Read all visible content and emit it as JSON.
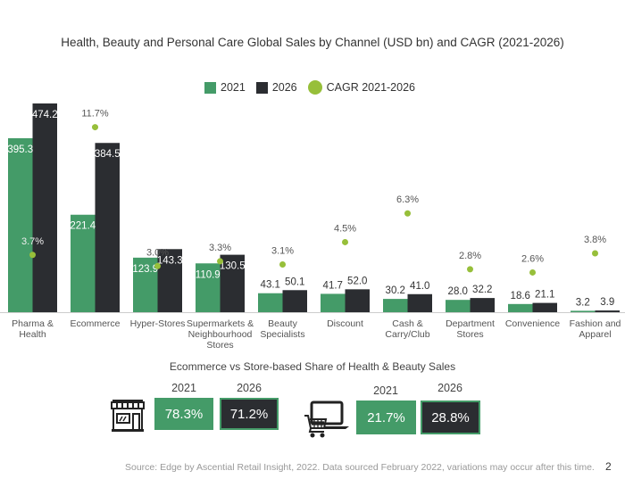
{
  "colors": {
    "c2021": "#449b68",
    "c2026": "#2b2d31",
    "cagr": "#97bf3a",
    "label_light": "#ffffff",
    "label_dark": "#333333"
  },
  "chart_data": {
    "type": "bar",
    "title": "Health, Beauty and Personal Care Global Sales by Channel (USD bn) and CAGR (2021-2026)",
    "xlabel": "",
    "ylabel": "USD bn",
    "grid": false,
    "legend_position": "top-center",
    "categories": [
      [
        "Pharma &",
        "Health"
      ],
      [
        "Ecommerce"
      ],
      [
        "Hyper-Stores"
      ],
      [
        "Supermarkets &",
        "Neighbourhood",
        "Stores"
      ],
      [
        "Beauty",
        "Specialists"
      ],
      [
        "Discount"
      ],
      [
        "Cash &",
        "Carry/Club"
      ],
      [
        "Department",
        "Stores"
      ],
      [
        "Convenience"
      ],
      [
        "Fashion and",
        "Apparel"
      ]
    ],
    "series": [
      {
        "name": "2021",
        "type": "bar",
        "values": [
          395.3,
          221.4,
          123.9,
          110.9,
          43.1,
          41.7,
          30.2,
          28.0,
          18.6,
          3.2
        ]
      },
      {
        "name": "2026",
        "type": "bar",
        "values": [
          474.2,
          384.5,
          143.3,
          130.5,
          50.1,
          52.0,
          41.0,
          32.2,
          21.1,
          3.9
        ]
      },
      {
        "name": "CAGR 2021-2026",
        "type": "scatter",
        "unit": "%",
        "values": [
          3.7,
          11.7,
          3.0,
          3.3,
          3.1,
          4.5,
          6.3,
          2.8,
          2.6,
          3.8
        ]
      }
    ],
    "ylim": [
      0,
      480
    ],
    "y2lim": [
      0,
      13
    ]
  },
  "legend": {
    "l2021": "2021",
    "l2026": "2026",
    "lcagr": "CAGR 2021-2026"
  },
  "share": {
    "title": "Ecommerce vs Store-based Share of Health & Beauty Sales",
    "store": {
      "icon": "storefront-icon",
      "y2021": "2021",
      "y2026": "2026",
      "v2021": "78.3%",
      "v2026": "71.2%"
    },
    "ecommerce": {
      "icon": "laptop-cart-icon",
      "y2021": "2021",
      "y2026": "2026",
      "v2021": "21.7%",
      "v2026": "28.8%"
    }
  },
  "footer": {
    "source": "Source: Edge by Ascential Retail Insight, 2022. Data sourced February 2022, variations may occur after this time.",
    "page_number": "2"
  }
}
